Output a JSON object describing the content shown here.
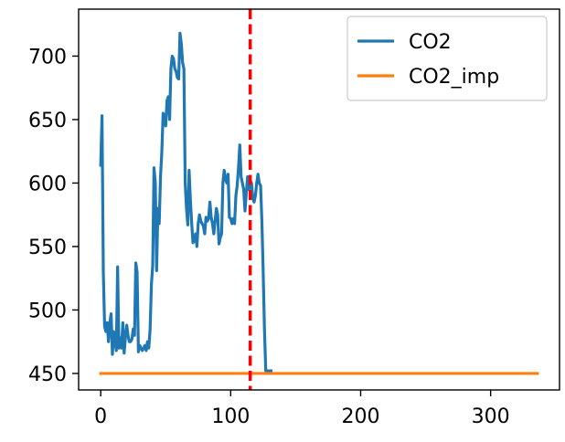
{
  "chart_data": {
    "type": "line",
    "title": "",
    "xlabel": "",
    "ylabel": "",
    "xlim": [
      -17,
      353
    ],
    "ylim": [
      437,
      737
    ],
    "x_ticks": [
      0,
      100,
      200,
      300
    ],
    "y_ticks": [
      450,
      500,
      550,
      600,
      650,
      700
    ],
    "x_tick_labels": [
      "0",
      "100",
      "200",
      "300"
    ],
    "y_tick_labels": [
      "450",
      "500",
      "550",
      "600",
      "650",
      "700"
    ],
    "grid": false,
    "legend_position": "top-right",
    "vline": {
      "x": 115,
      "color": "#ff0000",
      "style": "dashed"
    },
    "series": [
      {
        "name": "CO2",
        "color": "#1f77b4",
        "x": [
          0,
          1,
          2,
          3,
          4,
          5,
          6,
          7,
          8,
          9,
          10,
          11,
          12,
          13,
          14,
          15,
          16,
          17,
          18,
          19,
          20,
          21,
          22,
          23,
          24,
          25,
          26,
          27,
          28,
          29,
          30,
          31,
          32,
          33,
          34,
          35,
          36,
          37,
          38,
          39,
          40,
          41,
          42,
          43,
          44,
          45,
          46,
          47,
          48,
          49,
          50,
          51,
          52,
          53,
          54,
          55,
          56,
          57,
          58,
          59,
          60,
          61,
          62,
          63,
          64,
          65,
          66,
          67,
          68,
          69,
          70,
          71,
          72,
          73,
          74,
          75,
          76,
          77,
          78,
          79,
          80,
          81,
          82,
          83,
          84,
          85,
          86,
          87,
          88,
          89,
          90,
          91,
          92,
          93,
          94,
          95,
          96,
          97,
          98,
          99,
          100,
          101,
          102,
          103,
          104,
          105,
          106,
          107,
          108,
          109,
          110,
          111,
          112,
          113,
          114,
          115,
          116,
          117,
          118,
          119,
          120,
          121,
          122,
          123,
          124,
          125,
          126,
          127,
          128,
          129,
          130,
          131
        ],
        "values": [
          614,
          653,
          530,
          487,
          483,
          490,
          475,
          490,
          497,
          465,
          483,
          475,
          468,
          534,
          470,
          478,
          470,
          490,
          466,
          478,
          488,
          480,
          475,
          475,
          477,
          485,
          480,
          537,
          530,
          467,
          472,
          470,
          468,
          470,
          472,
          468,
          475,
          470,
          485,
          520,
          535,
          612,
          600,
          531,
          580,
          568,
          605,
          624,
          655,
          652,
          645,
          665,
          668,
          650,
          690,
          700,
          698,
          690,
          688,
          683,
          682,
          718,
          710,
          695,
          690,
          600,
          580,
          567,
          610,
          587,
          568,
          553,
          555,
          560,
          550,
          568,
          575,
          570,
          568,
          566,
          560,
          573,
          570,
          572,
          585,
          573,
          568,
          560,
          570,
          580,
          575,
          552,
          557,
          560,
          600,
          610,
          603,
          600,
          607,
          573,
          572,
          568,
          572,
          568,
          590,
          598,
          612,
          630,
          605,
          600,
          595,
          578,
          592,
          605,
          595,
          602,
          600,
          588,
          585,
          590,
          600,
          607,
          600,
          598,
          570,
          530,
          484,
          452,
          452,
          452,
          452,
          452
        ]
      },
      {
        "name": "CO2_imp",
        "color": "#ff7f0e",
        "x": [
          0,
          336
        ],
        "values": [
          450,
          450
        ]
      }
    ]
  }
}
